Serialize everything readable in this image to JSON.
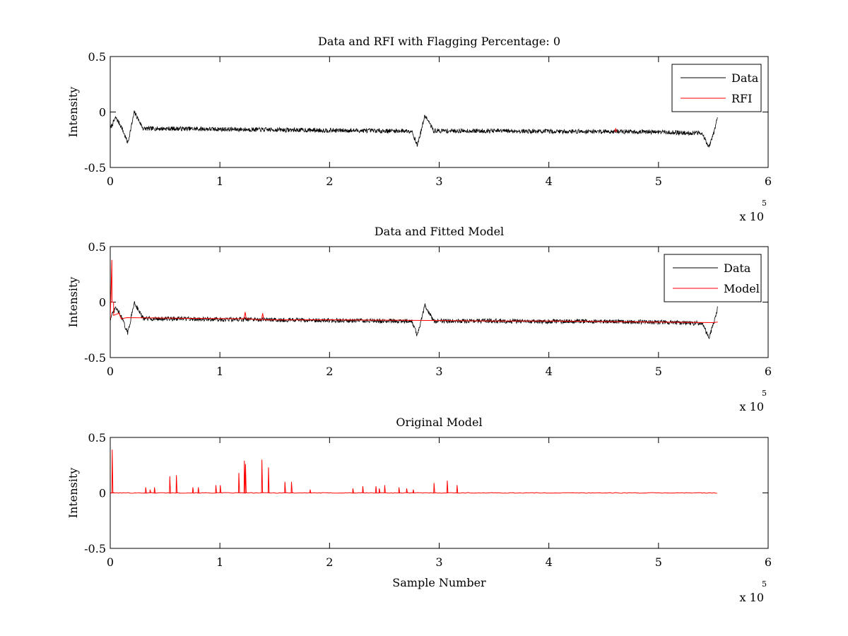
{
  "figure": {
    "background": "#ffffff",
    "colors": {
      "data": "#000000",
      "rfi": "#ff0000",
      "axes": "#000000"
    }
  },
  "chart_data": [
    {
      "type": "line",
      "title": "Data and RFI with Flagging Percentage: 0",
      "xlabel": "",
      "ylabel": "Intensity",
      "xlim": [
        0,
        600000
      ],
      "ylim": [
        -0.5,
        0.5
      ],
      "xticks": [
        0,
        1,
        2,
        3,
        4,
        5,
        6
      ],
      "yticks": [
        "-0.5",
        "0",
        "0.5"
      ],
      "x_multiplier_label": "x 10",
      "x_multiplier_exp": "5",
      "legend_position": "top-right",
      "legend": [
        {
          "name": "Data",
          "color": "#000000"
        },
        {
          "name": "RFI",
          "color": "#ff0000"
        }
      ],
      "series": [
        {
          "name": "Data",
          "color": "#000000",
          "x": [
            0,
            5000,
            10000,
            16000,
            22000,
            30000,
            60000,
            100000,
            150000,
            200000,
            250000,
            275000,
            280000,
            283000,
            287000,
            295000,
            350000,
            400000,
            450000,
            500000,
            530000,
            540000,
            546000,
            550000,
            554000
          ],
          "y": [
            -0.15,
            -0.05,
            -0.13,
            -0.28,
            0.0,
            -0.15,
            -0.15,
            -0.155,
            -0.16,
            -0.165,
            -0.17,
            -0.17,
            -0.3,
            -0.19,
            -0.03,
            -0.17,
            -0.17,
            -0.175,
            -0.175,
            -0.18,
            -0.19,
            -0.19,
            -0.32,
            -0.2,
            -0.05
          ],
          "noise_amplitude": 0.02
        },
        {
          "name": "RFI",
          "color": "#ff0000",
          "x": [
            460000,
            461000,
            462000
          ],
          "y": [
            -0.18,
            -0.15,
            -0.18
          ]
        }
      ]
    },
    {
      "type": "line",
      "title": "Data and Fitted Model",
      "xlabel": "",
      "ylabel": "Intensity",
      "xlim": [
        0,
        600000
      ],
      "ylim": [
        -0.5,
        0.5
      ],
      "xticks": [
        0,
        1,
        2,
        3,
        4,
        5,
        6
      ],
      "yticks": [
        "-0.5",
        "0",
        "0.5"
      ],
      "x_multiplier_label": "x 10",
      "x_multiplier_exp": "5",
      "legend_position": "top-right",
      "legend": [
        {
          "name": "Data",
          "color": "#000000"
        },
        {
          "name": "Model",
          "color": "#ff0000"
        }
      ],
      "series": [
        {
          "name": "Data",
          "color": "#000000",
          "x": [
            0,
            5000,
            10000,
            16000,
            22000,
            30000,
            60000,
            100000,
            150000,
            200000,
            250000,
            275000,
            280000,
            283000,
            287000,
            295000,
            350000,
            400000,
            450000,
            500000,
            530000,
            540000,
            546000,
            550000,
            554000
          ],
          "y": [
            -0.15,
            -0.05,
            -0.13,
            -0.28,
            0.0,
            -0.15,
            -0.15,
            -0.155,
            -0.16,
            -0.165,
            -0.17,
            -0.17,
            -0.3,
            -0.19,
            -0.03,
            -0.17,
            -0.17,
            -0.175,
            -0.175,
            -0.18,
            -0.19,
            -0.19,
            -0.32,
            -0.2,
            -0.05
          ],
          "noise_amplitude": 0.02
        },
        {
          "name": "Model",
          "color": "#ff0000",
          "x": [
            0,
            1500,
            1600,
            3000,
            3100,
            8000,
            10000,
            15000,
            60000,
            122000,
            123000,
            124000,
            138000,
            139000,
            140000,
            200000,
            280000,
            350000,
            400000,
            450000,
            500000,
            550000,
            554000
          ],
          "y": [
            -0.15,
            0.38,
            0.0,
            0.0,
            -0.12,
            -0.1,
            -0.15,
            -0.14,
            -0.145,
            -0.15,
            -0.09,
            -0.15,
            -0.16,
            -0.1,
            -0.16,
            -0.16,
            -0.165,
            -0.17,
            -0.17,
            -0.175,
            -0.18,
            -0.185,
            -0.18
          ]
        }
      ]
    },
    {
      "type": "line",
      "title": "Original Model",
      "xlabel": "Sample Number",
      "ylabel": "Intensity",
      "xlim": [
        0,
        600000
      ],
      "ylim": [
        -0.5,
        0.5
      ],
      "xticks": [
        0,
        1,
        2,
        3,
        4,
        5,
        6
      ],
      "yticks": [
        "-0.5",
        "0",
        "0.5"
      ],
      "x_multiplier_label": "x 10",
      "x_multiplier_exp": "5",
      "series": [
        {
          "name": "",
          "color": "#ff0000",
          "baseline": 0.0,
          "x_range": [
            0,
            554000
          ],
          "spikes": [
            [
              1500,
              0.39
            ],
            [
              32000,
              0.05
            ],
            [
              36000,
              0.03
            ],
            [
              40000,
              0.05
            ],
            [
              54000,
              0.15
            ],
            [
              60000,
              0.16
            ],
            [
              75000,
              0.05
            ],
            [
              80000,
              0.05
            ],
            [
              96000,
              0.07
            ],
            [
              100000,
              0.07
            ],
            [
              117000,
              0.18
            ],
            [
              122000,
              0.29
            ],
            [
              123000,
              0.26
            ],
            [
              138000,
              0.3
            ],
            [
              144000,
              0.23
            ],
            [
              159000,
              0.1
            ],
            [
              165000,
              0.1
            ],
            [
              182000,
              0.03
            ],
            [
              221000,
              0.04
            ],
            [
              230000,
              0.06
            ],
            [
              242000,
              0.06
            ],
            [
              245000,
              0.04
            ],
            [
              250000,
              0.07
            ],
            [
              263000,
              0.05
            ],
            [
              270000,
              0.04
            ],
            [
              276000,
              0.03
            ],
            [
              295000,
              0.09
            ],
            [
              307000,
              0.11
            ],
            [
              316000,
              0.07
            ]
          ]
        }
      ]
    }
  ]
}
